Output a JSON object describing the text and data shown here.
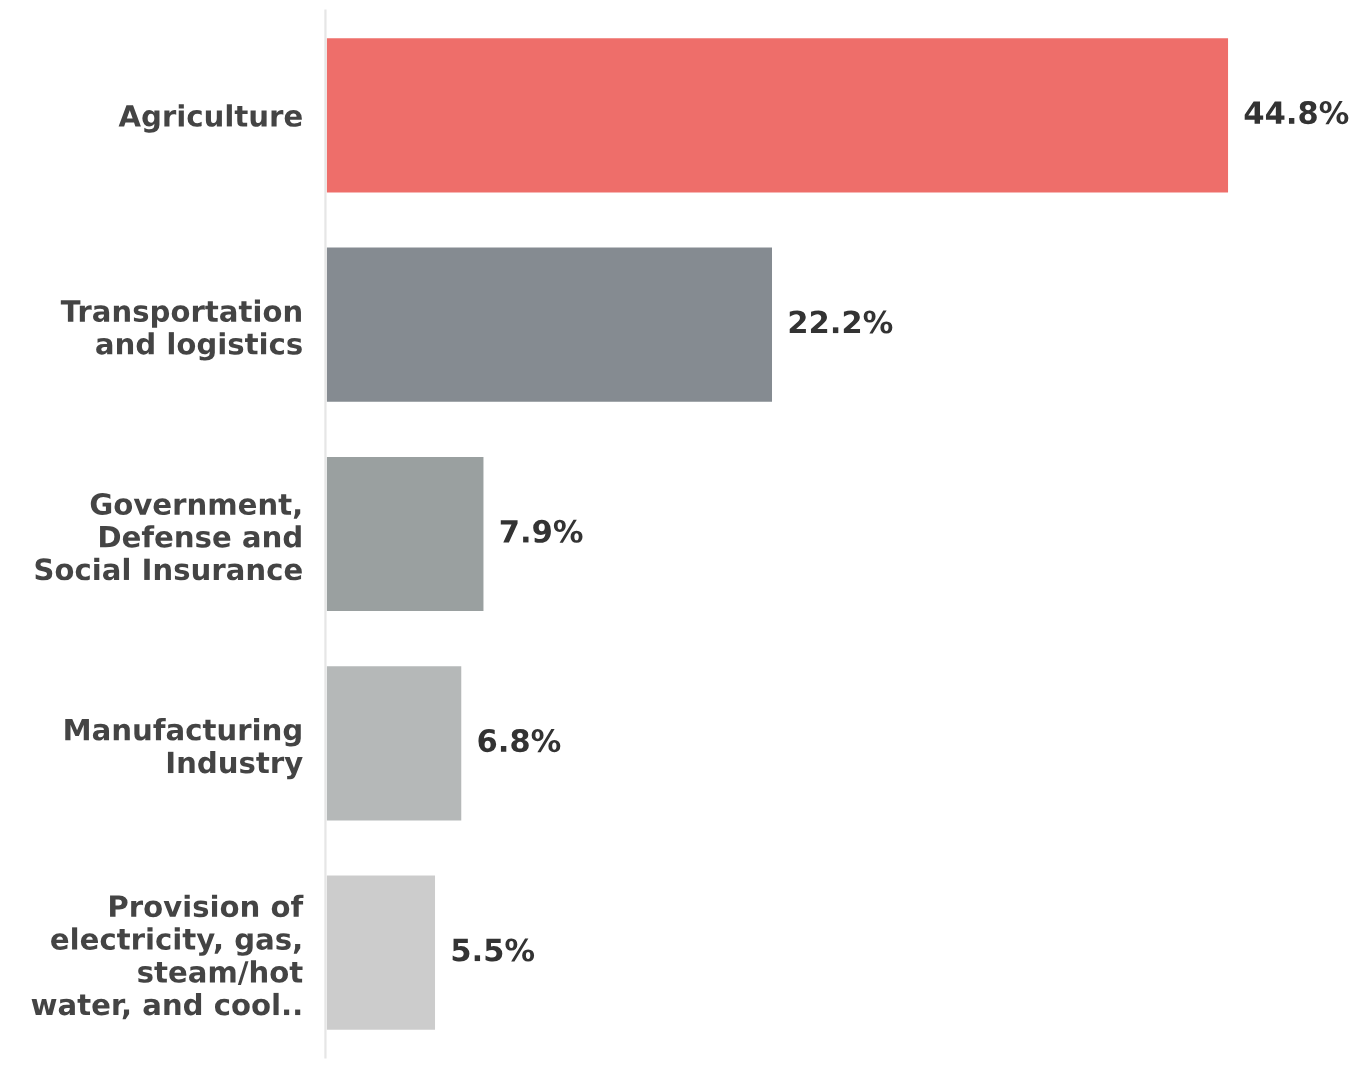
{
  "chart_data": {
    "type": "bar",
    "orientation": "horizontal",
    "categories": [
      "Agriculture",
      "Transportation\nand logistics",
      "Government,\nDefense and\nSocial Insurance",
      "Manufacturing\nIndustry",
      "Provision of\nelectricity, gas,\nsteam/hot\nwater, and cool.."
    ],
    "values": [
      44.8,
      22.2,
      7.9,
      6.8,
      5.5
    ],
    "colors": [
      "#ee6e6a",
      "#858b91",
      "#9aa0a0",
      "#b5b8b8",
      "#cccccc"
    ],
    "value_labels": [
      "44.8%",
      "22.2%",
      "7.9%",
      "6.8%",
      "5.5%"
    ],
    "grid": false,
    "legend": false
  }
}
